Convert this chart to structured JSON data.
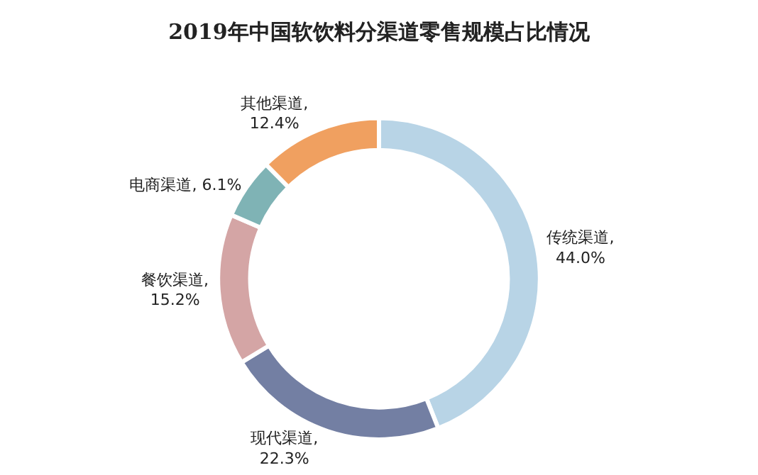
{
  "chart_data": {
    "type": "donut",
    "title": "2019年中国软饮料分渠道零售规模占比情况",
    "categories": [
      "传统渠道",
      "现代渠道",
      "餐饮渠道",
      "电商渠道",
      "其他渠道"
    ],
    "values": [
      44.0,
      22.3,
      15.2,
      6.1,
      12.4
    ],
    "colors": [
      "#b8d4e6",
      "#737fa3",
      "#d4a5a5",
      "#7fb3b5",
      "#f0a060"
    ],
    "value_labels": [
      ",\n44.0%",
      ",\n22.3%",
      ",\n15.2%",
      ", 6.1%",
      ",\n12.4%"
    ],
    "legend": false
  }
}
